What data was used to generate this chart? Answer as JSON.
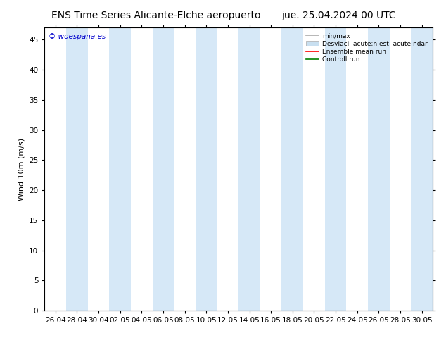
{
  "title_left": "ENS Time Series Alicante-Elche aeropuerto",
  "title_right": "jue. 25.04.2024 00 UTC",
  "ylabel": "Wind 10m (m/s)",
  "watermark": "© woespana.es",
  "ylim": [
    0,
    47
  ],
  "yticks": [
    0,
    5,
    10,
    15,
    20,
    25,
    30,
    35,
    40,
    45
  ],
  "xtick_labels": [
    "26.04",
    "28.04",
    "30.04",
    "02.05",
    "04.05",
    "06.05",
    "08.05",
    "10.05",
    "12.05",
    "14.05",
    "16.05",
    "18.05",
    "20.05",
    "22.05",
    "24.05",
    "26.05",
    "28.05",
    "30.05"
  ],
  "shaded_band_color": "#d6e8f7",
  "bg_color": "#ffffff",
  "legend_min_max_color": "#aaaaaa",
  "legend_spread_color": "#c8dff0",
  "legend_ensemble_color": "#ff0000",
  "legend_control_color": "#008000",
  "title_fontsize": 10,
  "axis_fontsize": 8,
  "tick_fontsize": 7.5,
  "watermark_color": "#0000cc",
  "legend_label_minmax": "min/max",
  "legend_label_spread": "Desviaci  acute;n est  acute;ndar",
  "legend_label_ensemble": "Ensemble mean run",
  "legend_label_control": "Controll run"
}
